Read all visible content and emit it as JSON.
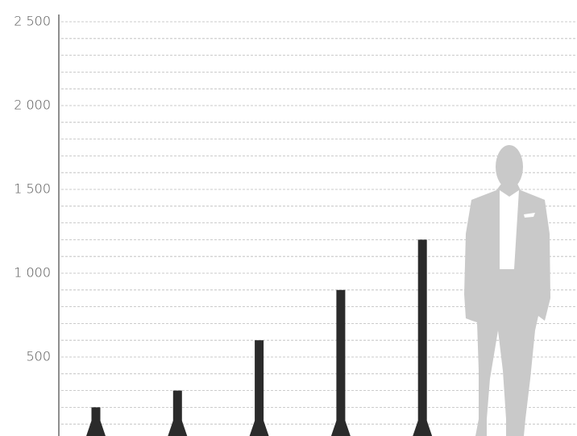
{
  "chart_data": {
    "type": "bar",
    "values": [
      200,
      300,
      600,
      900,
      1200
    ],
    "color": "#2b2b2b",
    "ylim": [
      0,
      2500
    ],
    "yticks": [
      {
        "value": 500,
        "label": "500"
      },
      {
        "value": 1000,
        "label": "1 000"
      },
      {
        "value": 1500,
        "label": "1 500"
      },
      {
        "value": 2000,
        "label": "2 000"
      },
      {
        "value": 2500,
        "label": "2 500"
      }
    ],
    "minor_yticks": [
      100,
      200,
      300,
      400,
      600,
      700,
      800,
      900,
      1100,
      1200,
      1300,
      1400,
      1600,
      1700,
      1800,
      1900,
      2100,
      2200,
      2300,
      2400
    ],
    "grid": true
  }
}
